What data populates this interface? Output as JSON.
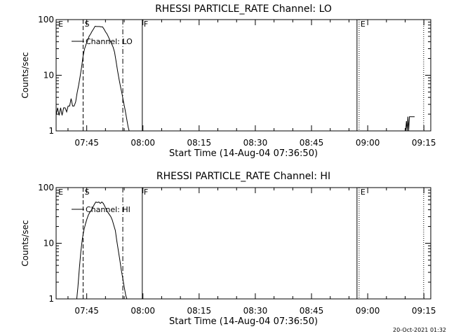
{
  "footer": {
    "timestamp": "20-Oct-2021 01:32"
  },
  "chart_data": [
    {
      "type": "line",
      "title": "RHESSI PARTICLE_RATE Channel: LO",
      "xlabel": "Start Time (14-Aug-04 07:36:50)",
      "ylabel": "Counts/sec",
      "x_unit": "minutes after 07:36:50",
      "xlim": [
        0,
        100
      ],
      "ylim": [
        1,
        100
      ],
      "yscale": "log",
      "x_ticks": [
        {
          "x": 8.17,
          "label": "07:45"
        },
        {
          "x": 23.17,
          "label": "08:00"
        },
        {
          "x": 38.17,
          "label": "08:15"
        },
        {
          "x": 53.17,
          "label": "08:30"
        },
        {
          "x": 68.17,
          "label": "08:45"
        },
        {
          "x": 83.17,
          "label": "09:00"
        },
        {
          "x": 98.17,
          "label": "09:15"
        }
      ],
      "y_ticks": [
        {
          "y": 1,
          "label": "1"
        },
        {
          "y": 10,
          "label": "10"
        },
        {
          "y": 100,
          "label": "100"
        }
      ],
      "legend": {
        "position": "top-left",
        "label": "Channel: LO"
      },
      "series": [
        {
          "name": "Channel: LO",
          "segments": [
            [
              [
                0.0,
                1.9
              ],
              [
                0.4,
                2.6
              ],
              [
                0.8,
                1.9
              ],
              [
                1.2,
                2.6
              ],
              [
                1.6,
                1.9
              ],
              [
                2.0,
                2.6
              ],
              [
                2.4,
                2.6
              ],
              [
                2.8,
                2.2
              ],
              [
                3.2,
                2.8
              ],
              [
                3.6,
                2.8
              ],
              [
                4.0,
                3.8
              ],
              [
                4.4,
                2.8
              ],
              [
                4.8,
                2.8
              ],
              [
                5.2,
                3.3
              ],
              [
                5.6,
                4.8
              ],
              [
                6.0,
                6.5
              ],
              [
                6.4,
                9.5
              ],
              [
                6.8,
                14
              ],
              [
                7.2,
                22
              ],
              [
                7.6,
                30
              ],
              [
                8.0,
                36
              ],
              [
                8.4,
                42
              ],
              [
                8.8,
                50
              ],
              [
                9.2,
                55
              ],
              [
                9.6,
                62
              ],
              [
                10.0,
                68
              ],
              [
                10.4,
                76
              ],
              [
                10.8,
                75
              ],
              [
                11.2,
                75
              ],
              [
                11.6,
                75
              ],
              [
                12.0,
                74
              ],
              [
                12.4,
                74
              ],
              [
                12.8,
                67
              ],
              [
                13.2,
                60
              ],
              [
                13.6,
                55
              ],
              [
                14.0,
                48
              ],
              [
                14.4,
                42
              ],
              [
                14.8,
                37
              ],
              [
                15.2,
                32
              ],
              [
                15.6,
                26
              ],
              [
                16.0,
                18
              ],
              [
                16.4,
                12
              ],
              [
                16.8,
                8.5
              ],
              [
                17.2,
                6.2
              ],
              [
                17.6,
                4.6
              ],
              [
                18.0,
                3.3
              ],
              [
                18.4,
                2.4
              ],
              [
                18.8,
                1.7
              ],
              [
                19.2,
                1.2
              ],
              [
                19.5,
                1.0
              ]
            ],
            [
              [
                93.3,
                1.0
              ],
              [
                93.5,
                1.5
              ],
              [
                93.7,
                1.0
              ],
              [
                93.9,
                1.8
              ],
              [
                94.1,
                1.0
              ],
              [
                94.3,
                1.8
              ],
              [
                94.5,
                1.8
              ],
              [
                94.7,
                1.8
              ],
              [
                94.9,
                1.8
              ],
              [
                95.3,
                1.8
              ],
              [
                95.7,
                1.8
              ]
            ]
          ]
        }
      ],
      "markers": [
        {
          "label": "E",
          "x": 0.2,
          "style": "none"
        },
        {
          "label": "S",
          "x": 7.2,
          "style": "dashed"
        },
        {
          "label": "",
          "x": 17.8,
          "style": "dashdot"
        },
        {
          "label": "F",
          "x": 23.0,
          "style": "solid"
        },
        {
          "label": "E",
          "x": 80.5,
          "style": "solid-dotted"
        },
        {
          "label": "",
          "x": 98.1,
          "style": "dotted"
        }
      ]
    },
    {
      "type": "line",
      "title": "RHESSI PARTICLE_RATE Channel: HI",
      "xlabel": "Start Time (14-Aug-04 07:36:50)",
      "ylabel": "Counts/sec",
      "x_unit": "minutes after 07:36:50",
      "xlim": [
        0,
        100
      ],
      "ylim": [
        1,
        100
      ],
      "yscale": "log",
      "x_ticks": [
        {
          "x": 8.17,
          "label": "07:45"
        },
        {
          "x": 23.17,
          "label": "08:00"
        },
        {
          "x": 38.17,
          "label": "08:15"
        },
        {
          "x": 53.17,
          "label": "08:30"
        },
        {
          "x": 68.17,
          "label": "08:45"
        },
        {
          "x": 83.17,
          "label": "09:00"
        },
        {
          "x": 98.17,
          "label": "09:15"
        }
      ],
      "y_ticks": [
        {
          "y": 1,
          "label": "1"
        },
        {
          "y": 10,
          "label": "10"
        },
        {
          "y": 100,
          "label": "100"
        }
      ],
      "legend": {
        "position": "top-left",
        "label": "Channel: HI"
      },
      "series": [
        {
          "name": "Channel: HI",
          "segments": [
            [
              [
                5.5,
                1.0
              ],
              [
                5.8,
                1.6
              ],
              [
                6.2,
                3.5
              ],
              [
                6.6,
                7.0
              ],
              [
                7.0,
                12
              ],
              [
                7.4,
                17
              ],
              [
                7.8,
                22
              ],
              [
                8.2,
                27
              ],
              [
                8.6,
                32
              ],
              [
                9.0,
                36
              ],
              [
                9.4,
                39
              ],
              [
                9.8,
                44
              ],
              [
                10.2,
                50
              ],
              [
                10.6,
                55
              ],
              [
                11.0,
                54
              ],
              [
                11.4,
                55
              ],
              [
                11.8,
                52
              ],
              [
                12.2,
                55
              ],
              [
                12.6,
                52
              ],
              [
                13.0,
                46
              ],
              [
                13.4,
                40
              ],
              [
                13.8,
                36
              ],
              [
                14.2,
                33
              ],
              [
                14.6,
                30
              ],
              [
                15.0,
                26
              ],
              [
                15.4,
                21
              ],
              [
                15.8,
                17
              ],
              [
                16.2,
                11
              ],
              [
                16.6,
                7.5
              ],
              [
                17.0,
                5.0
              ],
              [
                17.4,
                3.3
              ],
              [
                17.8,
                2.3
              ],
              [
                18.2,
                1.6
              ],
              [
                18.6,
                1.15
              ],
              [
                18.9,
                1.0
              ]
            ]
          ]
        }
      ],
      "markers": [
        {
          "label": "E",
          "x": 0.2,
          "style": "none"
        },
        {
          "label": "S",
          "x": 7.2,
          "style": "dashed"
        },
        {
          "label": "",
          "x": 17.8,
          "style": "dashdot"
        },
        {
          "label": "F",
          "x": 23.0,
          "style": "solid"
        },
        {
          "label": "E",
          "x": 80.5,
          "style": "solid-dotted"
        },
        {
          "label": "",
          "x": 98.1,
          "style": "dotted"
        }
      ]
    }
  ]
}
